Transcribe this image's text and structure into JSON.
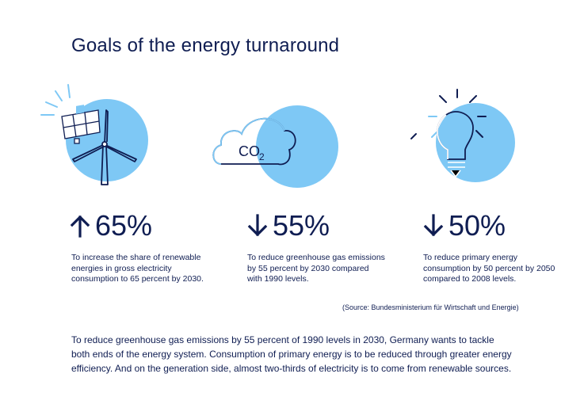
{
  "title": "Goals of the energy turnaround",
  "colors": {
    "navy": "#0f1d52",
    "light_blue": "#7ec8f5"
  },
  "goals": [
    {
      "icon": "wind-solar-icon",
      "direction": "up",
      "percent": "65%",
      "description": "To increase the share of renewable energies in gross electricity consumption to 65 percent by 2030."
    },
    {
      "icon": "co2-cloud-icon",
      "direction": "down",
      "percent": "55%",
      "description": "To reduce greenhouse gas emissions by 55 percent by 2030 compared with 1990 levels."
    },
    {
      "icon": "light-bulb-icon",
      "direction": "down",
      "percent": "50%",
      "description": "To reduce primary energy consumption by 50 percent by 2050 compared to 2008 levels."
    }
  ],
  "co2_label": "CO",
  "co2_sub": "2",
  "source": "(Source: Bundesministerium für Wirtschaft und Energie)",
  "body": "To reduce greenhouse gas emissions by 55 percent of 1990 levels in 2030, Germany wants to tackle both ends of the energy system. Consumption of primary energy is to be reduced through greater energy efficiency. And on the generation side, almost two-thirds of electricity is to come from renewable sources."
}
